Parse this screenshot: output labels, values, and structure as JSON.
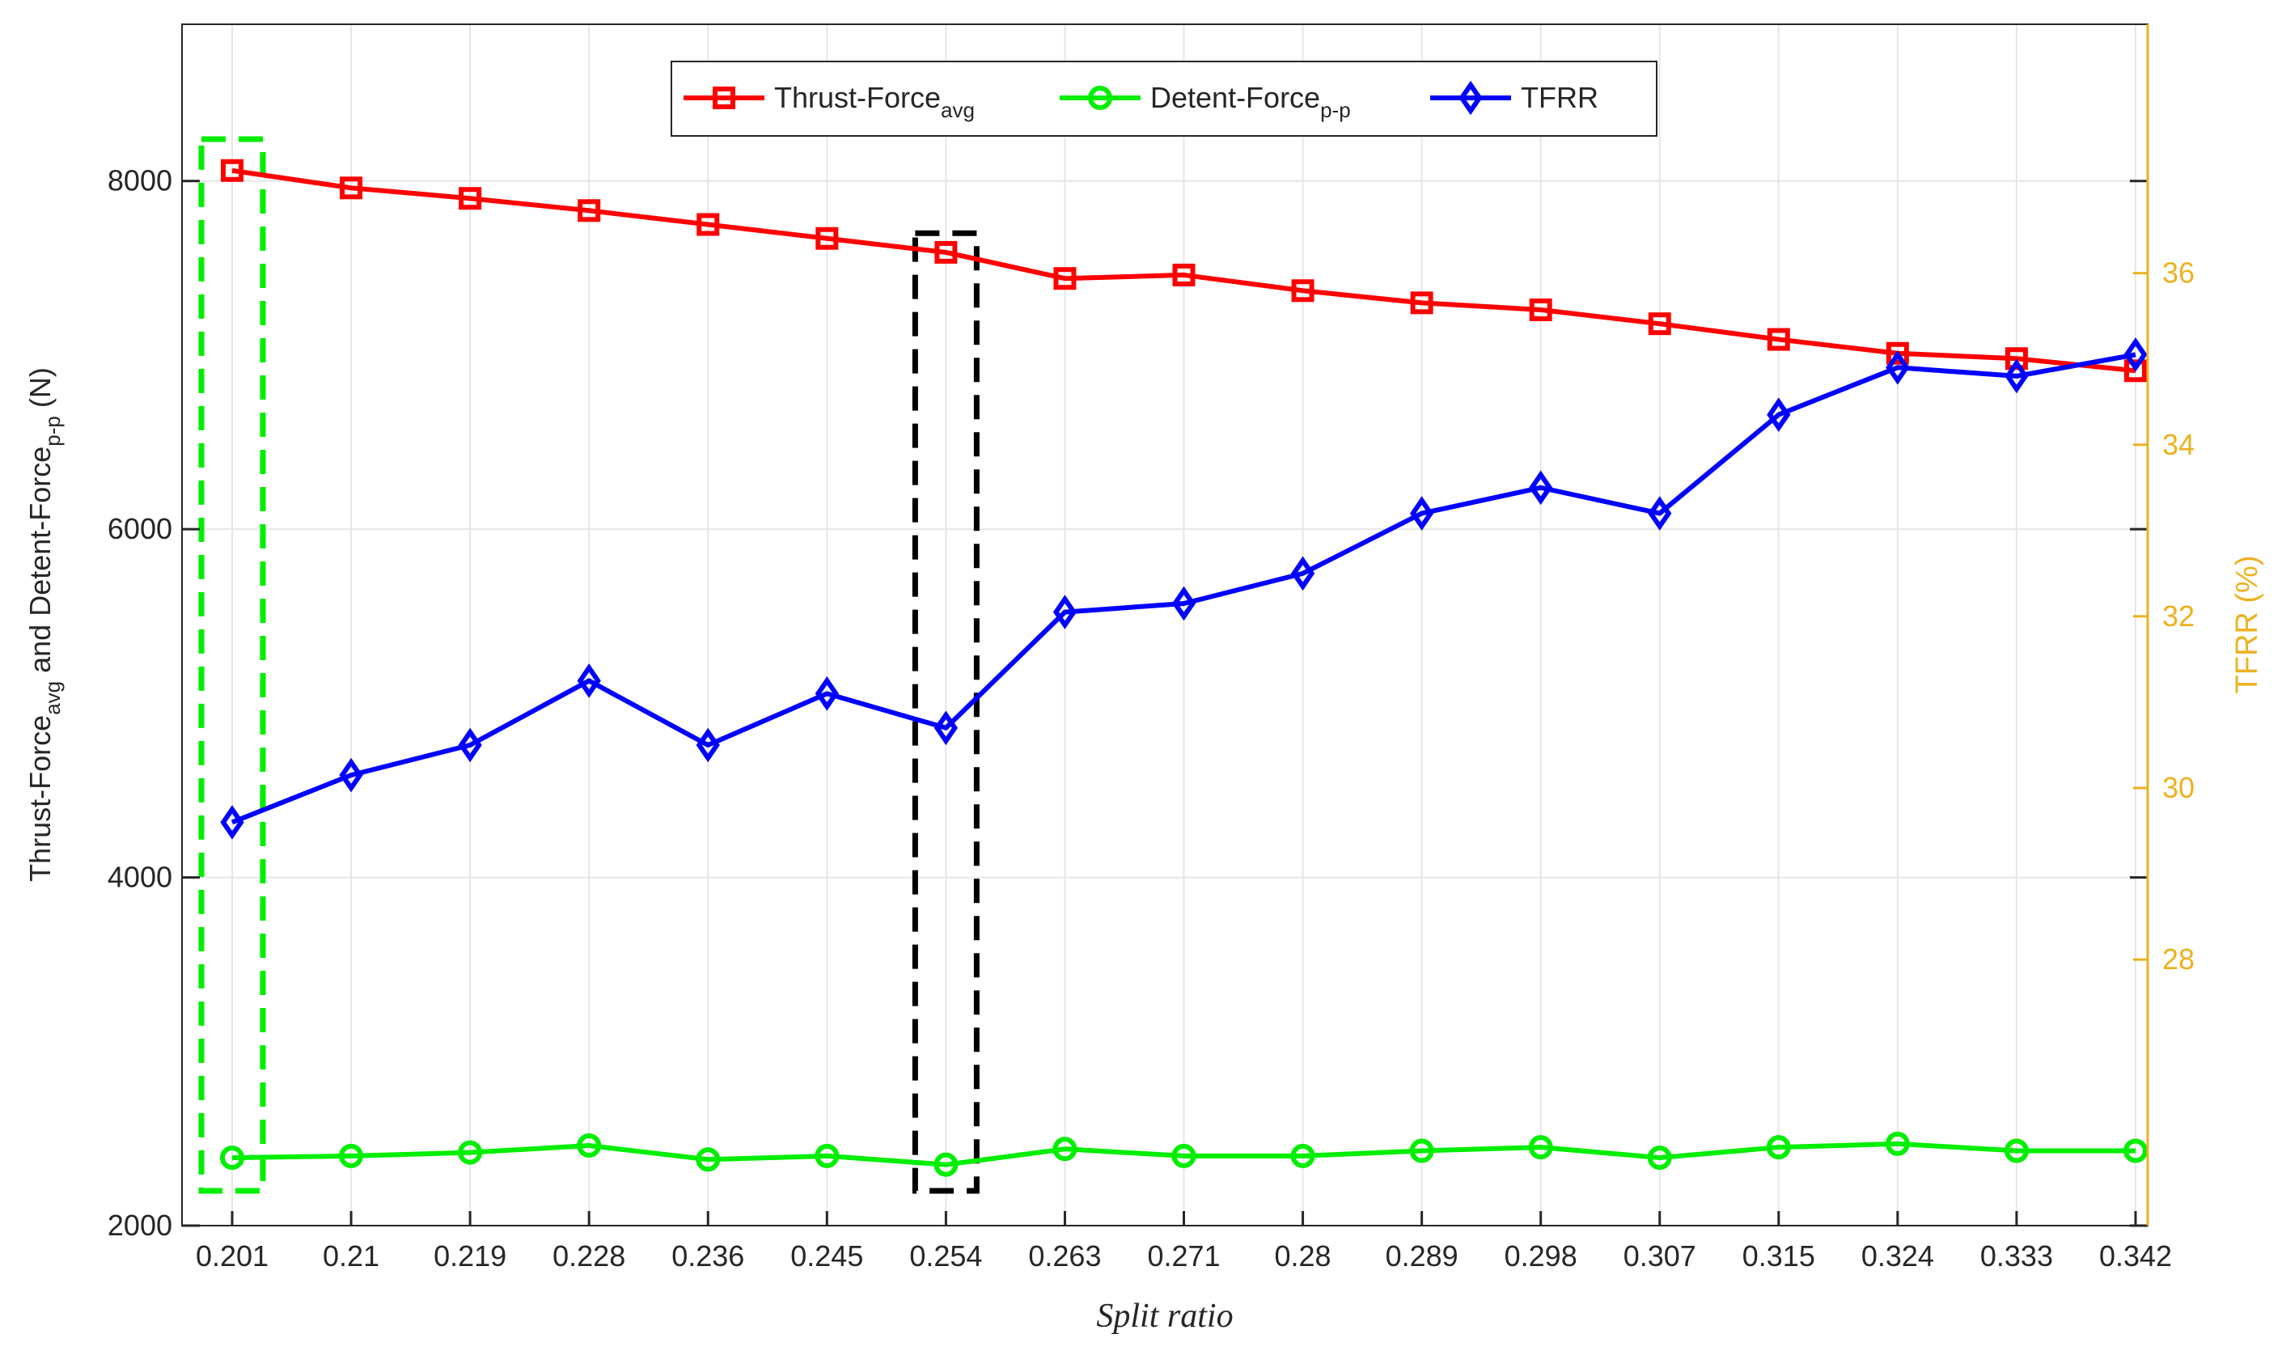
{
  "chart_data": {
    "type": "line",
    "xlabel": "Split ratio",
    "ylabel_left": {
      "main": "Thrust-Force",
      "sub1": "avg",
      "mid": " and Detent-Force",
      "sub2": "p-p",
      "end": " (N)"
    },
    "ylabel_right": "TFRR (%)",
    "categories": [
      "0.201",
      "0.21",
      "0.219",
      "0.228",
      "0.236",
      "0.245",
      "0.254",
      "0.263",
      "0.271",
      "0.28",
      "0.289",
      "0.298",
      "0.307",
      "0.315",
      "0.324",
      "0.333",
      "0.342"
    ],
    "y_left": {
      "lim": [
        2000,
        8900
      ],
      "ticks": [
        2000,
        4000,
        6000,
        8000
      ]
    },
    "y_right": {
      "lim": [
        24.9,
        38.9
      ],
      "ticks": [
        28,
        30,
        32,
        34,
        36
      ]
    },
    "grid": true,
    "legend_position": "top-center",
    "series": [
      {
        "name": "Thrust-Force",
        "name_sub": "avg",
        "axis": "left",
        "color": "#FF0000",
        "marker": "square",
        "values": [
          8060,
          7960,
          7900,
          7830,
          7750,
          7670,
          7590,
          7440,
          7460,
          7370,
          7300,
          7260,
          7180,
          7090,
          7010,
          6980,
          6910
        ]
      },
      {
        "name": "Detent-Force",
        "name_sub": "p-p",
        "axis": "left",
        "color": "#00EE00",
        "marker": "circle",
        "values": [
          2390,
          2400,
          2420,
          2460,
          2380,
          2400,
          2350,
          2440,
          2400,
          2400,
          2430,
          2450,
          2390,
          2450,
          2470,
          2430,
          2430
        ]
      },
      {
        "name": "TFRR",
        "axis": "right",
        "color": "#0000FF",
        "marker": "diamond",
        "values": [
          29.6,
          30.15,
          30.5,
          31.25,
          30.5,
          31.1,
          30.7,
          32.05,
          32.15,
          32.5,
          33.2,
          33.5,
          33.2,
          34.35,
          34.9,
          34.8,
          35.05
        ]
      }
    ],
    "highlight_boxes": [
      {
        "category": "0.201",
        "color": "#00EE00",
        "style": "dashed"
      },
      {
        "category": "0.254",
        "color": "#000000",
        "style": "dashed"
      }
    ]
  }
}
